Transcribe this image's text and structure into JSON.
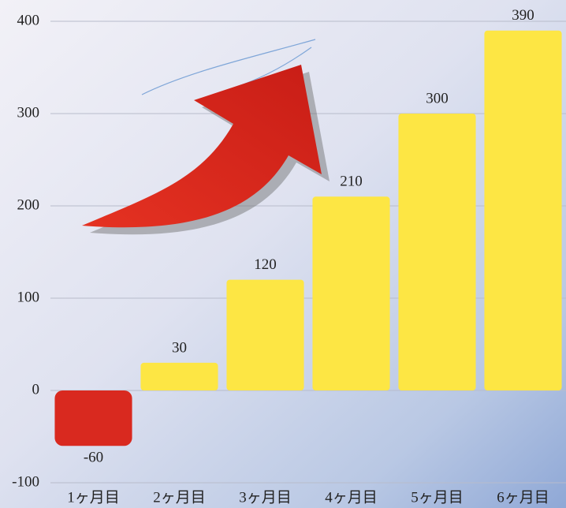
{
  "chart_data": {
    "type": "bar",
    "categories": [
      "1ヶ月目",
      "2ヶ月目",
      "3ヶ月目",
      "4ヶ月目",
      "5ヶ月目",
      "6ヶ月目"
    ],
    "values": [
      -60,
      30,
      120,
      210,
      300,
      390
    ],
    "colors": [
      "#d9291f",
      "#fde644",
      "#fde644",
      "#fde644",
      "#fde644",
      "#fde644"
    ],
    "ylim": [
      -100,
      400
    ],
    "yticks": [
      -100,
      0,
      100,
      200,
      300,
      400
    ],
    "grid": true
  }
}
